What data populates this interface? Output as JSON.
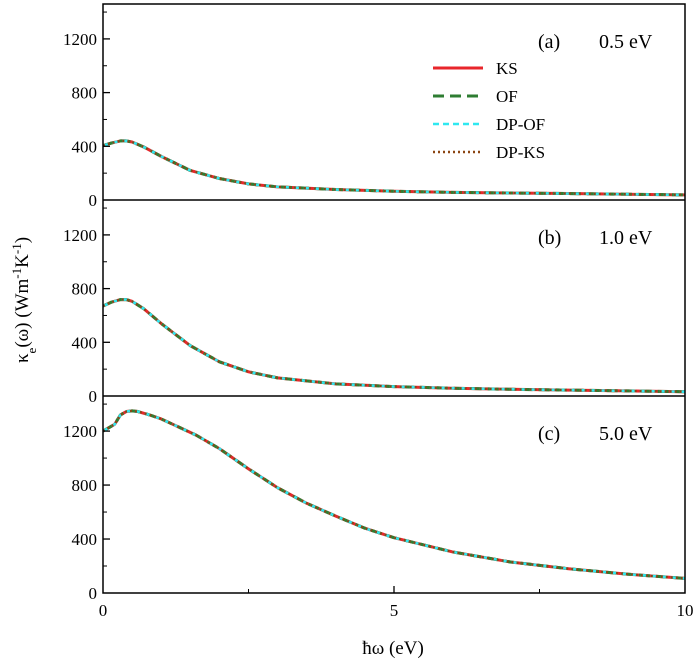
{
  "chart_data": {
    "type": "line",
    "xlabel": "ħω (eV)",
    "ylabel_main": "κ",
    "ylabel_sub": "e",
    "ylabel_mid": "(ω) (Wm",
    "ylabel_sup1": "-1",
    "ylabel_k": "K",
    "ylabel_sup2": "-1",
    "ylabel_end": ")",
    "xlim": [
      0,
      10
    ],
    "xticks": [
      "0",
      "5",
      "10"
    ],
    "legend": {
      "position": "top-right of panel (a)",
      "entries": [
        {
          "label": "KS",
          "color": "#e8262b",
          "style": "solid"
        },
        {
          "label": "OF",
          "color": "#2e7d32",
          "style": "dashed"
        },
        {
          "label": "DP-OF",
          "color": "#2ee8f0",
          "style": "dashed"
        },
        {
          "label": "DP-KS",
          "color": "#8b4513",
          "style": "dotted"
        }
      ]
    },
    "panels": [
      {
        "tag": "(a)",
        "label": "0.5 eV",
        "ylim": [
          0,
          1460
        ],
        "yticks": [
          "0",
          "400",
          "800",
          "1200"
        ],
        "x": [
          0,
          0.15,
          0.3,
          0.4,
          0.5,
          0.7,
          1.0,
          1.5,
          2.0,
          2.5,
          3.0,
          4.0,
          5.0,
          6.0,
          7.0,
          8.0,
          9.0,
          10.0
        ],
        "y": [
          405,
          425,
          440,
          440,
          432,
          395,
          325,
          220,
          160,
          120,
          98,
          78,
          65,
          57,
          52,
          48,
          43,
          38
        ]
      },
      {
        "tag": "(b)",
        "label": "1.0 eV",
        "ylim": [
          0,
          1460
        ],
        "yticks": [
          "0",
          "400",
          "800",
          "1200"
        ],
        "x": [
          0,
          0.15,
          0.3,
          0.4,
          0.5,
          0.7,
          1.0,
          1.5,
          2.0,
          2.5,
          3.0,
          4.0,
          5.0,
          6.0,
          7.0,
          8.0,
          9.0,
          10.0
        ],
        "y": [
          670,
          700,
          718,
          718,
          705,
          650,
          540,
          375,
          255,
          180,
          135,
          90,
          70,
          58,
          50,
          44,
          38,
          32
        ]
      },
      {
        "tag": "(c)",
        "label": "5.0 eV",
        "ylim": [
          0,
          1460
        ],
        "yticks": [
          "0",
          "400",
          "800",
          "1200"
        ],
        "x": [
          0,
          0.2,
          0.3,
          0.4,
          0.5,
          0.6,
          0.8,
          1.0,
          1.3,
          1.6,
          2.0,
          2.5,
          3.0,
          3.5,
          4.0,
          4.5,
          5.0,
          6.0,
          7.0,
          8.0,
          9.0,
          10.0
        ],
        "y": [
          1200,
          1250,
          1320,
          1345,
          1350,
          1345,
          1320,
          1290,
          1230,
          1170,
          1070,
          920,
          780,
          665,
          570,
          480,
          410,
          305,
          230,
          180,
          140,
          108
        ]
      }
    ]
  }
}
